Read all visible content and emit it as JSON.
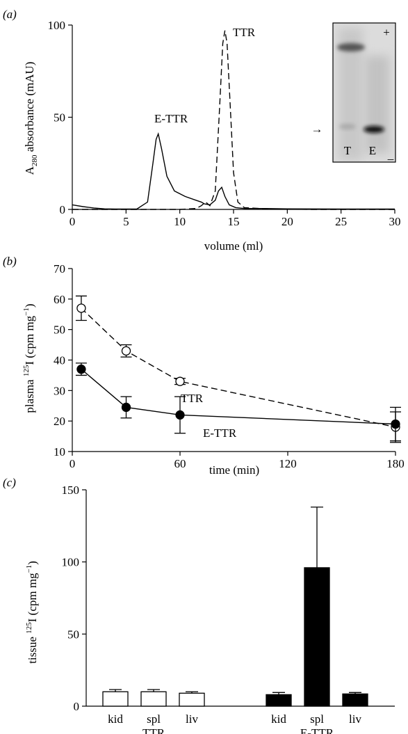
{
  "chart_data": [
    {
      "panel": "(a)",
      "type": "line",
      "xlabel": "volume (ml)",
      "ylabel": "A280 absorbance (mAU)",
      "ylabel_main": "A",
      "ylabel_sub": "280",
      "ylabel_rest": " absorbance (mAU)",
      "xlim": [
        0,
        30
      ],
      "ylim": [
        0,
        100
      ],
      "xticks": [
        0,
        5,
        10,
        15,
        20,
        25,
        30
      ],
      "yticks": [
        0,
        50,
        100
      ],
      "annotations": [
        "E-TTR",
        "TTR"
      ],
      "series": [
        {
          "name": "E-TTR",
          "style": "solid",
          "x": [
            0,
            1,
            2,
            3,
            4,
            5,
            6,
            7,
            7.5,
            7.8,
            8.0,
            8.3,
            8.8,
            9.5,
            10.5,
            11.5,
            12.0,
            12.3,
            12.8,
            13.3,
            13.6,
            13.9,
            14.2,
            14.6,
            15.2,
            16,
            18,
            20,
            25,
            30
          ],
          "y": [
            2.5,
            1.5,
            0.8,
            0.3,
            0.2,
            0.2,
            0.2,
            4,
            25,
            38,
            41,
            33,
            18,
            10,
            7,
            5,
            4,
            3,
            2.5,
            5,
            10,
            12,
            7,
            2.5,
            1,
            0.5,
            0.5,
            0.3,
            0.2,
            0.2
          ]
        },
        {
          "name": "TTR",
          "style": "dashed",
          "x": [
            0,
            5,
            10,
            11.5,
            12.0,
            12.4,
            12.8,
            13.3,
            13.7,
            14.0,
            14.2,
            14.4,
            14.7,
            15.0,
            15.4,
            16,
            18,
            22,
            30
          ],
          "y": [
            0,
            0,
            0,
            0.5,
            2,
            4,
            2,
            10,
            55,
            90,
            97,
            90,
            55,
            20,
            4,
            1,
            0.3,
            0,
            0
          ]
        }
      ],
      "inset": {
        "labels": [
          "T",
          "E"
        ],
        "plus": "+",
        "minus": "_",
        "arrow": "→"
      }
    },
    {
      "panel": "(b)",
      "type": "line",
      "xlabel": "time (min)",
      "ylabel": "plasma 125I (cpm mg−1)",
      "ylabel_pre": "plasma ",
      "ylabel_sup": "125",
      "ylabel_mid": "I (cpm mg",
      "ylabel_sup2": "−1",
      "ylabel_end": ")",
      "xlim": [
        0,
        180
      ],
      "ylim": [
        10,
        70
      ],
      "xticks": [
        0,
        60,
        120,
        180
      ],
      "yticks": [
        10,
        20,
        30,
        40,
        50,
        60,
        70
      ],
      "series": [
        {
          "name": "TTR",
          "style": "dashed",
          "marker": "open",
          "x": [
            5,
            30,
            60,
            180
          ],
          "y": [
            57,
            43,
            33,
            18
          ],
          "err": [
            4,
            2,
            1,
            5
          ]
        },
        {
          "name": "E-TTR",
          "style": "solid",
          "marker": "filled",
          "x": [
            5,
            30,
            60,
            180
          ],
          "y": [
            37,
            24.5,
            22,
            19
          ],
          "err": [
            2,
            3.5,
            6,
            5.5
          ]
        }
      ]
    },
    {
      "panel": "(c)",
      "type": "bar",
      "ylabel": "tissue 125I (cpm mg−1)",
      "ylabel_pre": "tissue ",
      "ylabel_sup": "125",
      "ylabel_mid": "I (cpm mg",
      "ylabel_sup2": "−1",
      "ylabel_end": ")",
      "ylim": [
        0,
        150
      ],
      "yticks": [
        0,
        50,
        100,
        150
      ],
      "groups": [
        {
          "name": "TTR",
          "fill": "#ffffff",
          "categories": [
            "kid",
            "spl",
            "liv"
          ],
          "values": [
            10,
            10,
            9
          ],
          "err": [
            1.5,
            1.5,
            1
          ]
        },
        {
          "name": "E-TTR",
          "fill": "#000000",
          "categories": [
            "kid",
            "spl",
            "liv"
          ],
          "values": [
            8,
            96,
            8.5
          ],
          "err": [
            1.5,
            42,
            1
          ]
        }
      ]
    }
  ]
}
